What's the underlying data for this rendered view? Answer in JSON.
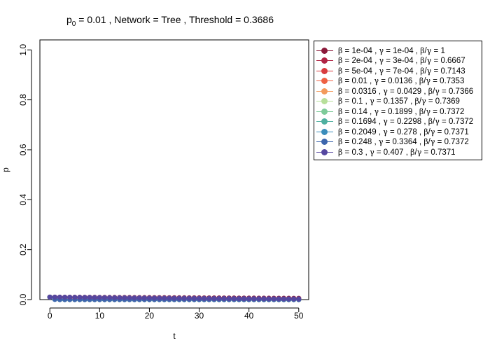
{
  "title": {
    "prefix": "p",
    "sub": "0",
    "rest": " = 0.01 ,  Network = Tree ,  Threshold = 0.3686"
  },
  "chart_data": {
    "type": "scatter",
    "xlabel": "t",
    "ylabel": "p",
    "xlim": [
      -2,
      52
    ],
    "ylim": [
      0,
      1.04
    ],
    "x_ticks": [
      "0",
      "10",
      "20",
      "30",
      "40",
      "50"
    ],
    "y_ticks": [
      "0.0",
      "0.2",
      "0.4",
      "0.6",
      "0.8",
      "1.0"
    ],
    "legend_position": "top-right outside plot",
    "x": [
      0,
      1,
      2,
      3,
      4,
      5,
      6,
      7,
      8,
      9,
      10,
      11,
      12,
      13,
      14,
      15,
      16,
      17,
      18,
      19,
      20,
      21,
      22,
      23,
      24,
      25,
      26,
      27,
      28,
      29,
      30,
      31,
      32,
      33,
      34,
      35,
      36,
      37,
      38,
      39,
      40,
      41,
      42,
      43,
      44,
      45,
      46,
      47,
      48,
      49,
      50
    ],
    "series": [
      {
        "beta": "1e-04",
        "gamma": "1e-04",
        "ratio": "1",
        "color": "#8b1a3a",
        "values": [
          0.01,
          0.0099,
          0.0098,
          0.0097,
          0.0096,
          0.0095,
          0.0094,
          0.0093,
          0.0092,
          0.0091,
          0.009,
          0.0089,
          0.0088,
          0.0087,
          0.0086,
          0.0085,
          0.0084,
          0.0083,
          0.0082,
          0.0081,
          0.008,
          0.0079,
          0.0078,
          0.0077,
          0.0076,
          0.0075,
          0.0074,
          0.0073,
          0.0072,
          0.0071,
          0.007,
          0.0069,
          0.0068,
          0.0067,
          0.0066,
          0.0065,
          0.0064,
          0.0063,
          0.0062,
          0.0061,
          0.006,
          0.0059,
          0.0058,
          0.0057,
          0.0056,
          0.0055,
          0.0054,
          0.0053,
          0.0052,
          0.0051,
          0.005
        ]
      },
      {
        "beta": "2e-04",
        "gamma": "3e-04",
        "ratio": "0.6667",
        "color": "#b02545",
        "values": [
          0.01,
          0.0095,
          0.009,
          0.0086,
          0.0082,
          0.0078,
          0.0074,
          0.007,
          0.0067,
          0.0064,
          0.006,
          0.0057,
          0.0055,
          0.0052,
          0.005,
          0.0047,
          0.0045,
          0.0043,
          0.0041,
          0.0039,
          0.0037,
          0.0035,
          0.0033,
          0.0032,
          0.003,
          0.0029,
          0.0027,
          0.0026,
          0.0025,
          0.0024,
          0.0022,
          0.0021,
          0.002,
          0.0019,
          0.0018,
          0.0017,
          0.0017,
          0.0016,
          0.0015,
          0.0014,
          0.0014,
          0.0013,
          0.0012,
          0.0012,
          0.0011,
          0.0011,
          0.001,
          0.001,
          0.0009,
          0.0009,
          0.0008
        ]
      },
      {
        "beta": "5e-04",
        "gamma": "7e-04",
        "ratio": "0.7143",
        "color": "#d83c3f",
        "values": [
          0.01,
          0.0091,
          0.0083,
          0.0076,
          0.0069,
          0.0063,
          0.0058,
          0.0053,
          0.0048,
          0.0044,
          0.004,
          0.0036,
          0.0033,
          0.003,
          0.0028,
          0.0025,
          0.0023,
          0.0021,
          0.0019,
          0.0017,
          0.0016,
          0.0014,
          0.0013,
          0.0012,
          0.0011,
          0.001,
          0.0009,
          0.0008,
          0.0008,
          0.0007,
          0.0006,
          0.0006,
          0.0005,
          0.0005,
          0.0004,
          0.0004,
          0.0004,
          0.0003,
          0.0003,
          0.0003,
          0.0002,
          0.0002,
          0.0002,
          0.0002,
          0.0002,
          0.0001,
          0.0001,
          0.0001,
          0.0001,
          0.0001,
          0.0001
        ]
      },
      {
        "beta": "0.01",
        "gamma": "0.0136",
        "ratio": "0.7353",
        "color": "#ee6144",
        "values": [
          0.01,
          0.006,
          0.0036,
          0.0022,
          0.0013,
          0.0008,
          0.0005,
          0.0003,
          0.0002,
          0.0001,
          0.0001,
          0,
          0,
          0,
          0,
          0,
          0,
          0,
          0,
          0,
          0,
          0,
          0,
          0,
          0,
          0,
          0,
          0,
          0,
          0,
          0,
          0,
          0,
          0,
          0,
          0,
          0,
          0,
          0,
          0,
          0,
          0,
          0,
          0,
          0,
          0,
          0,
          0,
          0,
          0,
          0
        ]
      },
      {
        "beta": "0.0316",
        "gamma": "0.0429",
        "ratio": "0.7366",
        "color": "#f39a5c",
        "values": [
          0.01,
          0.004,
          0.0016,
          0.0006,
          0.0003,
          0.0001,
          0,
          0,
          0,
          0,
          0,
          0,
          0,
          0,
          0,
          0,
          0,
          0,
          0,
          0,
          0,
          0,
          0,
          0,
          0,
          0,
          0,
          0,
          0,
          0,
          0,
          0,
          0,
          0,
          0,
          0,
          0,
          0,
          0,
          0,
          0,
          0,
          0,
          0,
          0,
          0,
          0,
          0,
          0,
          0,
          0
        ]
      },
      {
        "beta": "0.1",
        "gamma": "0.1357",
        "ratio": "0.7369",
        "color": "#b7df9a",
        "values": [
          0.01,
          0.002,
          0.0004,
          0.0001,
          0,
          0,
          0,
          0,
          0,
          0,
          0,
          0,
          0,
          0,
          0,
          0,
          0,
          0,
          0,
          0,
          0,
          0,
          0,
          0,
          0,
          0,
          0,
          0,
          0,
          0,
          0,
          0,
          0,
          0,
          0,
          0,
          0,
          0,
          0,
          0,
          0,
          0,
          0,
          0,
          0,
          0,
          0,
          0,
          0,
          0,
          0
        ]
      },
      {
        "beta": "0.14",
        "gamma": "0.1899",
        "ratio": "0.7372",
        "color": "#7ecb9a",
        "values": [
          0.01,
          0.0015,
          0.0002,
          0,
          0,
          0,
          0,
          0,
          0,
          0,
          0,
          0,
          0,
          0,
          0,
          0,
          0,
          0,
          0,
          0,
          0,
          0,
          0,
          0,
          0,
          0,
          0,
          0,
          0,
          0,
          0,
          0,
          0,
          0,
          0,
          0,
          0,
          0,
          0,
          0,
          0,
          0,
          0,
          0,
          0,
          0,
          0,
          0,
          0,
          0,
          0
        ]
      },
      {
        "beta": "0.1694",
        "gamma": "0.2298",
        "ratio": "0.7372",
        "color": "#4fb0a0",
        "values": [
          0.01,
          0.0012,
          0.0001,
          0,
          0,
          0,
          0,
          0,
          0,
          0,
          0,
          0,
          0,
          0,
          0,
          0,
          0,
          0,
          0,
          0,
          0,
          0,
          0,
          0,
          0,
          0,
          0,
          0,
          0,
          0,
          0,
          0,
          0,
          0,
          0,
          0,
          0,
          0,
          0,
          0,
          0,
          0,
          0,
          0,
          0,
          0,
          0,
          0,
          0,
          0,
          0
        ]
      },
      {
        "beta": "0.2049",
        "gamma": "0.278",
        "ratio": "0.7371",
        "color": "#3b8dbb",
        "values": [
          0.01,
          0.001,
          0.0001,
          0,
          0,
          0,
          0,
          0,
          0,
          0,
          0,
          0,
          0,
          0,
          0,
          0,
          0,
          0,
          0,
          0,
          0,
          0,
          0,
          0,
          0,
          0,
          0,
          0,
          0,
          0,
          0,
          0,
          0,
          0,
          0,
          0,
          0,
          0,
          0,
          0,
          0,
          0,
          0,
          0,
          0,
          0,
          0,
          0,
          0,
          0,
          0
        ]
      },
      {
        "beta": "0.248",
        "gamma": "0.3364",
        "ratio": "0.7372",
        "color": "#3d66ad",
        "values": [
          0.01,
          0.0008,
          0.0001,
          0,
          0,
          0,
          0,
          0,
          0,
          0,
          0,
          0,
          0,
          0,
          0,
          0,
          0,
          0,
          0,
          0,
          0,
          0,
          0,
          0,
          0,
          0,
          0,
          0,
          0,
          0,
          0,
          0,
          0,
          0,
          0,
          0,
          0,
          0,
          0,
          0,
          0,
          0,
          0,
          0,
          0,
          0,
          0,
          0,
          0,
          0,
          0
        ]
      },
      {
        "beta": "0.3",
        "gamma": "0.407",
        "ratio": "0.7371",
        "color": "#5547a0",
        "values": [
          0.01,
          0.0099,
          0.0097,
          0.0095,
          0.0093,
          0.0091,
          0.0089,
          0.0087,
          0.0085,
          0.0083,
          0.0081,
          0.0079,
          0.0077,
          0.0075,
          0.0073,
          0.0071,
          0.0069,
          0.0067,
          0.0066,
          0.0064,
          0.0062,
          0.0061,
          0.0059,
          0.0058,
          0.0056,
          0.0055,
          0.0053,
          0.0052,
          0.0051,
          0.0049,
          0.0048,
          0.0047,
          0.0046,
          0.0044,
          0.0043,
          0.0042,
          0.0041,
          0.004,
          0.0039,
          0.0038,
          0.0037,
          0.0036,
          0.0035,
          0.0034,
          0.0033,
          0.0032,
          0.0031,
          0.003,
          0.0029,
          0.0028,
          0.0027
        ]
      }
    ]
  }
}
